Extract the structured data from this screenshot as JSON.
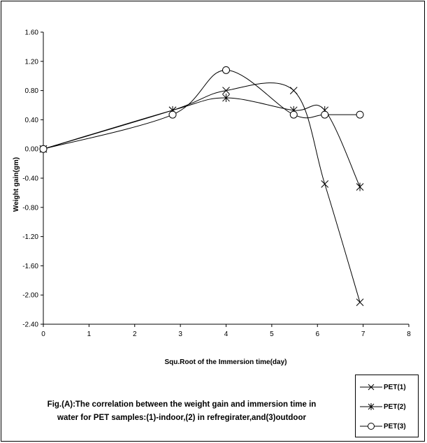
{
  "chart_data": {
    "type": "line",
    "title": "",
    "xlabel": "Squ.Root of the Immersion time(day)",
    "ylabel": "Weight gain(gm)",
    "xlim": [
      0,
      8
    ],
    "ylim": [
      -2.4,
      1.6
    ],
    "xticks": [
      "0",
      "1",
      "2",
      "3",
      "4",
      "5",
      "6",
      "7",
      "8"
    ],
    "yticks": [
      "1.60",
      "1.20",
      "0.80",
      "0.40",
      "0.00",
      "-0.40",
      "-0.80",
      "-1.20",
      "-1.60",
      "-2.00",
      "-2.40"
    ],
    "grid": false,
    "legend_position": "bottom-right",
    "series": [
      {
        "name": "PET(1)",
        "marker": "x",
        "x": [
          0,
          2.83,
          4.0,
          5.48,
          6.16,
          6.93
        ],
        "y": [
          0.0,
          0.53,
          0.8,
          0.8,
          -0.48,
          -2.1
        ]
      },
      {
        "name": "PET(2)",
        "marker": "star",
        "x": [
          0,
          2.83,
          4.0,
          5.48,
          6.16,
          6.93
        ],
        "y": [
          0.0,
          0.53,
          0.7,
          0.53,
          0.53,
          -0.52
        ]
      },
      {
        "name": "PET(3)",
        "marker": "circle",
        "x": [
          0,
          2.83,
          4.0,
          5.48,
          6.16,
          6.93
        ],
        "y": [
          0.0,
          0.47,
          1.08,
          0.47,
          0.47,
          0.47
        ]
      }
    ]
  },
  "caption": {
    "line1": "Fig.(A):The correlation between the weight gain and immersion time in",
    "line2": "water for PET samples:(1)-indoor,(2) in refregirater,and(3)outdoor"
  }
}
